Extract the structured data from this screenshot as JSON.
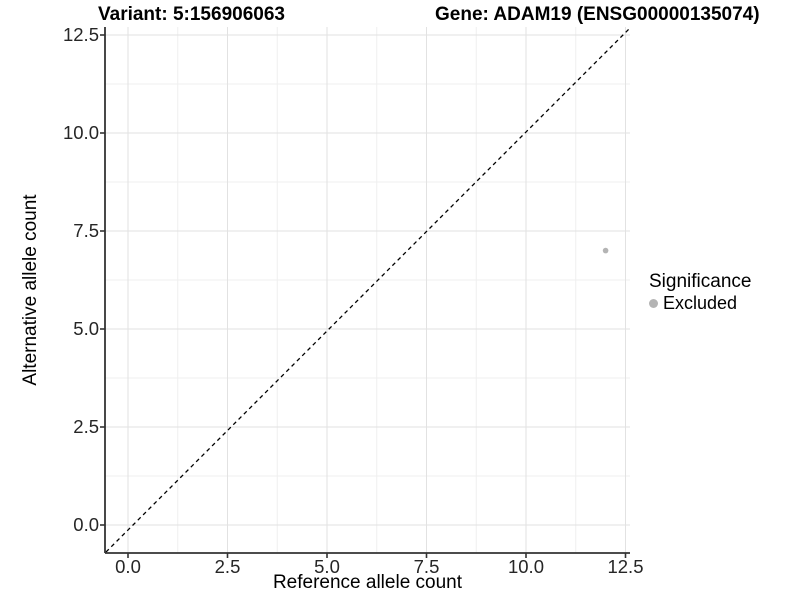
{
  "chart_data": {
    "type": "scatter",
    "title": "Variant: 5:156906063        Gene: ADAM19 (ENSG00000135074)",
    "title_left": "Variant: 5:156906063",
    "title_right": "Gene: ADAM19 (ENSG00000135074)",
    "xlabel": "Reference allele count",
    "ylabel": "Alternative allele count",
    "xlim": [
      -0.6,
      13.1
    ],
    "ylim": [
      -0.7,
      13.0
    ],
    "x_ticks": {
      "values": [
        0,
        2.5,
        5,
        7.5,
        10,
        12.5
      ],
      "labels": [
        "0.0",
        "2.5",
        "5.0",
        "7.5",
        "10.0",
        "12.5"
      ]
    },
    "y_ticks": {
      "values": [
        0,
        2.5,
        5,
        7.5,
        10,
        12.5
      ],
      "labels": [
        "0.0",
        "2.5",
        "5.0",
        "7.5",
        "10.0",
        "12.5"
      ]
    },
    "grid": "major and minor, light gray on white",
    "series": [
      {
        "name": "Excluded",
        "points": [
          {
            "x": 12,
            "y": 7
          }
        ],
        "color": "#b4b4b4"
      }
    ],
    "reference_line": {
      "type": "identity (y = x)",
      "style": "dashed",
      "color": "#000000"
    },
    "legend": {
      "title": "Significance",
      "position": "right",
      "items": [
        {
          "label": "Excluded",
          "color": "#b4b4b4"
        }
      ]
    },
    "colors": {
      "background": "#ffffff",
      "grid_major": "#e2e2e2",
      "grid_minor": "#efefef",
      "axis_line": "#333333",
      "tick_text": "#262626",
      "point": "#b4b4b4"
    }
  }
}
